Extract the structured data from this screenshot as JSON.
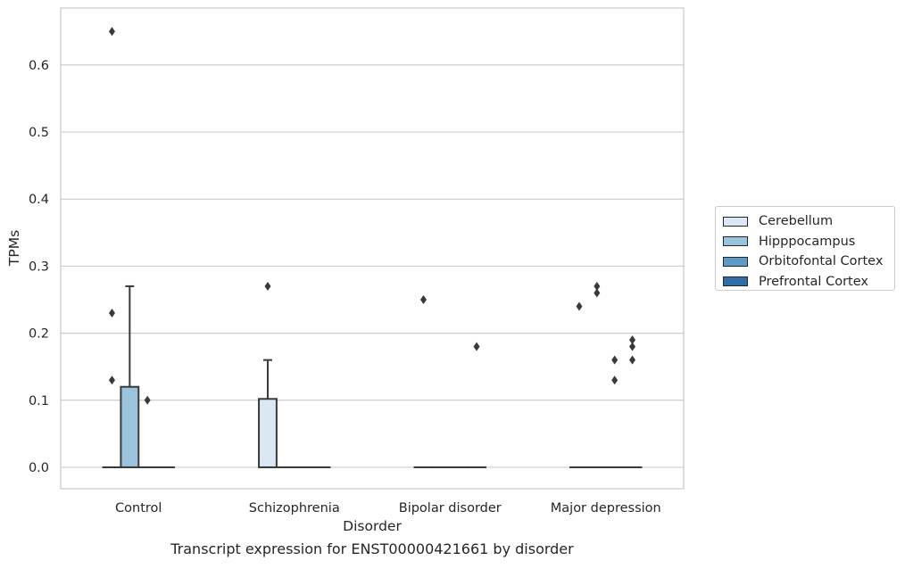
{
  "chart_data": {
    "type": "box",
    "title": "",
    "caption": "Transcript expression for ENST00000421661 by disorder",
    "xlabel": "Disorder",
    "ylabel": "TPMs",
    "ylim": [
      -0.032,
      0.685
    ],
    "yticks": [
      0.0,
      0.1,
      0.2,
      0.3,
      0.4,
      0.5,
      0.6
    ],
    "ytick_labels": [
      "0.0",
      "0.1",
      "0.2",
      "0.3",
      "0.4",
      "0.5",
      "0.6"
    ],
    "grid": "horizontal",
    "legend_position": "right",
    "categories": [
      "Control",
      "Schizophrenia",
      "Bipolar disorder",
      "Major depression"
    ],
    "series": [
      {
        "name": "Cerebellum",
        "color": "#dbe8f4",
        "boxes": [
          {
            "q1": 0,
            "median": 0,
            "q3": 0,
            "whisker_low": 0,
            "whisker_high": 0,
            "outliers": [
              0.65,
              0.23,
              0.13
            ]
          },
          {
            "q1": 0,
            "median": 0,
            "q3": 0.102,
            "whisker_low": 0,
            "whisker_high": 0.16,
            "outliers": [
              0.27
            ]
          },
          {
            "q1": 0,
            "median": 0,
            "q3": 0,
            "whisker_low": 0,
            "whisker_high": 0,
            "outliers": [
              0.25
            ]
          },
          {
            "q1": 0,
            "median": 0,
            "q3": 0,
            "whisker_low": 0,
            "whisker_high": 0,
            "outliers": [
              0.24
            ]
          }
        ]
      },
      {
        "name": "Hipppocampus",
        "color": "#9cc3dc",
        "boxes": [
          {
            "q1": 0,
            "median": 0,
            "q3": 0.12,
            "whisker_low": 0,
            "whisker_high": 0.27,
            "outliers": []
          },
          {
            "q1": 0,
            "median": 0,
            "q3": 0,
            "whisker_low": 0,
            "whisker_high": 0,
            "outliers": []
          },
          {
            "q1": 0,
            "median": 0,
            "q3": 0,
            "whisker_low": 0,
            "whisker_high": 0,
            "outliers": []
          },
          {
            "q1": 0,
            "median": 0,
            "q3": 0,
            "whisker_low": 0,
            "whisker_high": 0,
            "outliers": [
              0.27,
              0.26
            ]
          }
        ]
      },
      {
        "name": "Orbitofontal Cortex",
        "color": "#5a9bc7",
        "boxes": [
          {
            "q1": 0,
            "median": 0,
            "q3": 0,
            "whisker_low": 0,
            "whisker_high": 0,
            "outliers": [
              0.1
            ]
          },
          {
            "q1": 0,
            "median": 0,
            "q3": 0,
            "whisker_low": 0,
            "whisker_high": 0,
            "outliers": []
          },
          {
            "q1": 0,
            "median": 0,
            "q3": 0,
            "whisker_low": 0,
            "whisker_high": 0,
            "outliers": []
          },
          {
            "q1": 0,
            "median": 0,
            "q3": 0,
            "whisker_low": 0,
            "whisker_high": 0,
            "outliers": [
              0.16,
              0.13
            ]
          }
        ]
      },
      {
        "name": "Prefrontal Cortex",
        "color": "#2f6ea8",
        "boxes": [
          {
            "q1": 0,
            "median": 0,
            "q3": 0,
            "whisker_low": 0,
            "whisker_high": 0,
            "outliers": []
          },
          {
            "q1": 0,
            "median": 0,
            "q3": 0,
            "whisker_low": 0,
            "whisker_high": 0,
            "outliers": []
          },
          {
            "q1": 0,
            "median": 0,
            "q3": 0,
            "whisker_low": 0,
            "whisker_high": 0,
            "outliers": [
              0.18
            ]
          },
          {
            "q1": 0,
            "median": 0,
            "q3": 0,
            "whisker_low": 0,
            "whisker_high": 0,
            "outliers": [
              0.19,
              0.18,
              0.16
            ]
          }
        ]
      }
    ]
  }
}
